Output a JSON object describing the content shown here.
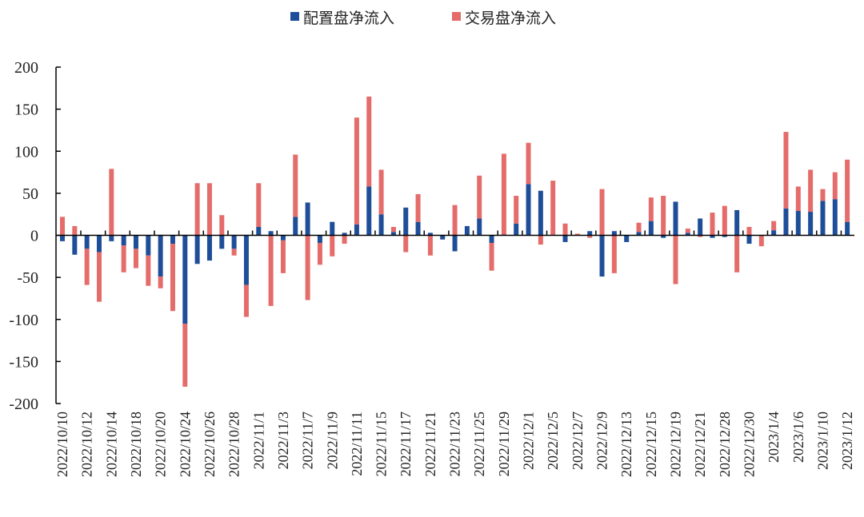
{
  "chart_data": {
    "type": "bar",
    "stacked": true,
    "title": "",
    "xlabel": "",
    "ylabel": "",
    "ylim": [
      -200,
      200
    ],
    "yticks": [
      200,
      150,
      100,
      50,
      0,
      -50,
      -100,
      -150,
      -200
    ],
    "grid": false,
    "legend_position": "top",
    "x_tick_labels": [
      "2022/10/10",
      "2022/10/12",
      "2022/10/14",
      "2022/10/18",
      "2022/10/20",
      "2022/10/24",
      "2022/10/26",
      "2022/10/28",
      "2022/11/1",
      "2022/11/3",
      "2022/11/7",
      "2022/11/9",
      "2022/11/11",
      "2022/11/15",
      "2022/11/17",
      "2022/11/21",
      "2022/11/23",
      "2022/11/25",
      "2022/11/29",
      "2022/12/1",
      "2022/12/5",
      "2022/12/7",
      "2022/12/9",
      "2022/12/13",
      "2022/12/15",
      "2022/12/19",
      "2022/12/21",
      "2022/12/28",
      "2022/12/30",
      "2023/1/4",
      "2023/1/6",
      "2023/1/10",
      "2023/1/12"
    ],
    "series": [
      {
        "name": "配置盘净流入",
        "color": "#1F4E99",
        "values": [
          -7,
          -23,
          -16,
          -20,
          -7,
          -12,
          -16,
          -24,
          -49,
          -10,
          -105,
          -34,
          -30,
          -16,
          -16,
          -59,
          10,
          5,
          -6,
          22,
          39,
          -9,
          16,
          3,
          13,
          58,
          25,
          4,
          33,
          16,
          3,
          -5,
          -19,
          11,
          20,
          -9,
          1,
          14,
          61,
          53,
          0,
          -8,
          0,
          5,
          -49,
          5,
          -8,
          4,
          17,
          -3,
          40,
          3,
          20,
          -3,
          -2,
          30,
          -10,
          0,
          6,
          32,
          29,
          28,
          41,
          43,
          16
        ]
      },
      {
        "name": "交易盘净流入",
        "color": "#E46C6A",
        "values": [
          22,
          11,
          -43,
          -59,
          79,
          -32,
          -23,
          -36,
          -14,
          -80,
          -75,
          62,
          62,
          24,
          -8,
          -38,
          52,
          -84,
          -39,
          74,
          -77,
          -26,
          -25,
          -10,
          127,
          107,
          53,
          6,
          -20,
          33,
          -24,
          0,
          36,
          0,
          51,
          -33,
          96,
          33,
          49,
          -11,
          65,
          14,
          2,
          -3,
          55,
          -45,
          0,
          11,
          28,
          47,
          -58,
          5,
          -2,
          27,
          35,
          -44,
          10,
          -13,
          11,
          91,
          29,
          50,
          14,
          32,
          74
        ]
      }
    ]
  }
}
